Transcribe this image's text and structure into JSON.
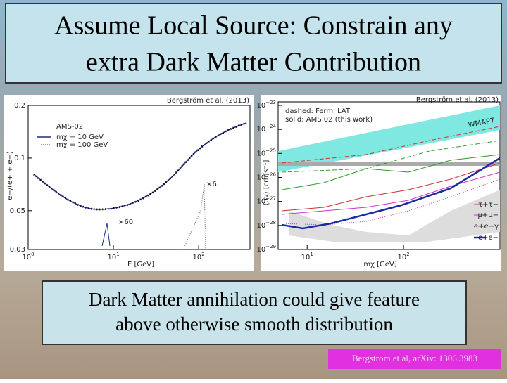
{
  "header": {
    "title_lines": [
      "Assume Local Source: Constrain any",
      "extra Dark Matter Contribution"
    ]
  },
  "left_plot": {
    "credit": "Bergström et al. (2013)",
    "y_label": "e+/(e+ + e−)",
    "x_label": "E [GeV]",
    "legend": [
      "AMS-02",
      "mχ = 10 GeV",
      "mχ = 100 GeV"
    ],
    "annotations": [
      "×6",
      "×60"
    ],
    "ylim": [
      0.03,
      0.2
    ],
    "yticks": [
      0.2,
      0.1,
      0.05,
      0.03
    ],
    "xlim": [
      1,
      400
    ],
    "xticks": [
      {
        "value": 1,
        "base": "10",
        "exp": "0"
      },
      {
        "value": 10,
        "base": "10",
        "exp": "1"
      },
      {
        "value": 100,
        "base": "10",
        "exp": "2"
      }
    ]
  },
  "right_plot": {
    "credit": "Bergström et al. (2013)",
    "y_label": "⟨σv⟩ [cm³s⁻¹]",
    "x_label": "mχ [GeV]",
    "legend_top": [
      "dashed: Fermi LAT",
      "solid: AMS 02 (this work)"
    ],
    "band_label": "WMAP7",
    "legend": [
      "τ+τ−",
      "μ+μ−",
      "e+e−γ",
      "e+e−"
    ],
    "ylim": [
      1e-29,
      1e-23
    ],
    "xlim": [
      5,
      1000
    ],
    "yticks": [
      {
        "value": 1e-23,
        "base": "10",
        "exp": "−23"
      },
      {
        "value": 1e-24,
        "base": "10",
        "exp": "−24"
      },
      {
        "value": 1e-25,
        "base": "10",
        "exp": "−25"
      },
      {
        "value": 1e-26,
        "base": "10",
        "exp": "−26"
      },
      {
        "value": 1e-27,
        "base": "10",
        "exp": "−27"
      },
      {
        "value": 1e-28,
        "base": "10",
        "exp": "−28"
      },
      {
        "value": 1e-29,
        "base": "10",
        "exp": "−29"
      }
    ],
    "xticks": [
      {
        "value": 10,
        "base": "10",
        "exp": "1"
      },
      {
        "value": 100,
        "base": "10",
        "exp": "2"
      }
    ]
  },
  "caption": {
    "lines": [
      "Dark Matter annihilation could give feature",
      "above otherwise smooth distribution"
    ]
  },
  "citation": "Bergstrom et al, arXiv: 1306.3983"
}
